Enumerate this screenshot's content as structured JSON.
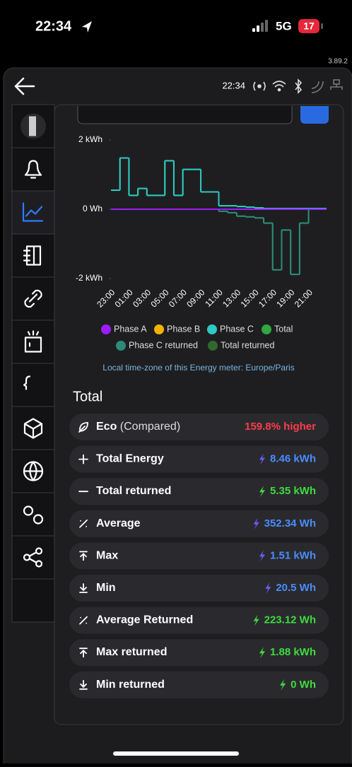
{
  "status_bar": {
    "time": "22:34",
    "network": "5G",
    "battery": "17"
  },
  "app": {
    "version": "3.89.2",
    "header_time": "22:34"
  },
  "chart_data": {
    "type": "step",
    "categories": [
      "23:00",
      null,
      "01:00",
      null,
      "03:00",
      null,
      "05:00",
      null,
      "07:00",
      null,
      "09:00",
      null,
      "11:00",
      null,
      "13:00",
      null,
      "15:00",
      null,
      "17:00",
      null,
      "19:00",
      null,
      "21:00",
      null
    ],
    "ylim": [
      -2000,
      2000
    ],
    "yticks": [
      {
        "value": 2000,
        "label": "2 kWh"
      },
      {
        "value": 0,
        "label": "0 Wh"
      },
      {
        "value": -2000,
        "label": "-2 kWh"
      }
    ],
    "series": [
      {
        "name": "Phase A",
        "color": "#9b1cff",
        "values": [
          0,
          0,
          0,
          0,
          0,
          0,
          0,
          0,
          0,
          0,
          0,
          0,
          0,
          0,
          0,
          0,
          0,
          0,
          0,
          0,
          0,
          0,
          0,
          0
        ]
      },
      {
        "name": "Phase B",
        "color": "#f0b400",
        "values": [
          0,
          0,
          0,
          0,
          0,
          0,
          0,
          0,
          0,
          0,
          0,
          0,
          0,
          0,
          0,
          0,
          0,
          0,
          0,
          0,
          0,
          0,
          0,
          0
        ]
      },
      {
        "name": "Phase C",
        "color": "#2ec8c8",
        "values": [
          550,
          1480,
          400,
          600,
          400,
          400,
          1400,
          400,
          1150,
          1150,
          500,
          500,
          100,
          100,
          80,
          60,
          40,
          20,
          20,
          20,
          20,
          20,
          20,
          20
        ]
      },
      {
        "name": "Total",
        "color": "#2fa83e",
        "values": [
          550,
          1480,
          400,
          600,
          400,
          400,
          1400,
          400,
          1150,
          1150,
          500,
          500,
          100,
          100,
          80,
          60,
          40,
          20,
          20,
          20,
          20,
          20,
          20,
          20
        ]
      },
      {
        "name": "Phase C returned",
        "color": "#2a8c78",
        "values": [
          0,
          0,
          0,
          0,
          0,
          0,
          0,
          0,
          0,
          0,
          0,
          0,
          -60,
          -100,
          -200,
          -220,
          -250,
          -400,
          -1750,
          -600,
          -1880,
          -400,
          0,
          0
        ]
      },
      {
        "name": "Total returned",
        "color": "#2e6a30",
        "values": [
          0,
          0,
          0,
          0,
          0,
          0,
          0,
          0,
          0,
          0,
          0,
          0,
          -60,
          -100,
          -200,
          -220,
          -250,
          -400,
          -1750,
          -600,
          -1880,
          -400,
          0,
          0
        ]
      }
    ],
    "note": "Local time-zone of this Energy meter: Europe/Paris"
  },
  "summary": {
    "title": "Total",
    "rows": [
      {
        "label": "Eco",
        "note": "(Compared)",
        "value": "159.8% higher",
        "color": "#ff3b4a"
      },
      {
        "label": "Total Energy",
        "value": "8.46 kWh",
        "color": "#4a8cff"
      },
      {
        "label": "Total returned",
        "value": "5.35 kWh",
        "color": "#3ddc3d"
      },
      {
        "label": "Average",
        "value": "352.34 Wh",
        "color": "#4a8cff"
      },
      {
        "label": "Max",
        "value": "1.51 kWh",
        "color": "#4a8cff"
      },
      {
        "label": "Min",
        "value": "20.5 Wh",
        "color": "#4a8cff"
      },
      {
        "label": "Average Returned",
        "value": "223.12 Wh",
        "color": "#3ddc3d"
      },
      {
        "label": "Max returned",
        "value": "1.88 kWh",
        "color": "#3ddc3d"
      },
      {
        "label": "Min returned",
        "value": "0 Wh",
        "color": "#3ddc3d"
      }
    ]
  }
}
